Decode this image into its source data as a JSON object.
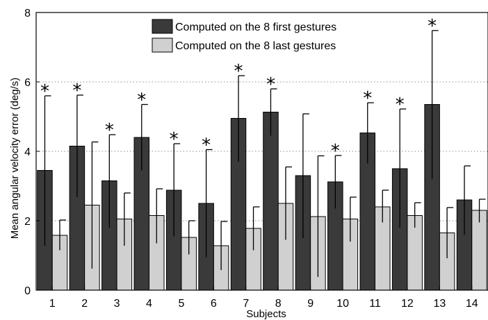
{
  "chart_data": {
    "type": "bar",
    "title": "",
    "xlabel": "Subjects",
    "ylabel": "Mean angular velocity error (deg/s)",
    "ylim": [
      0,
      8
    ],
    "yticks": [
      0,
      2,
      4,
      6,
      8
    ],
    "grid": "y-dotted",
    "legend_position": "top-center",
    "categories": [
      "1",
      "2",
      "3",
      "4",
      "5",
      "6",
      "7",
      "8",
      "9",
      "10",
      "11",
      "12",
      "13",
      "14"
    ],
    "series": [
      {
        "name": "Computed on the 8 first gestures",
        "color": "#3a3a3a",
        "values": [
          3.45,
          4.15,
          3.15,
          4.4,
          2.88,
          2.5,
          4.95,
          5.13,
          3.3,
          3.12,
          4.53,
          3.5,
          5.35,
          2.6
        ],
        "error_low": [
          1.28,
          2.68,
          1.8,
          3.45,
          1.55,
          0.95,
          3.7,
          4.45,
          1.5,
          2.35,
          3.65,
          1.8,
          3.2,
          1.6
        ],
        "error_high": [
          5.6,
          5.62,
          4.48,
          5.35,
          4.22,
          4.05,
          6.18,
          5.8,
          5.08,
          3.88,
          5.4,
          5.22,
          7.48,
          3.58
        ]
      },
      {
        "name": "Computed on the 8 last gestures",
        "color": "#d0d0d0",
        "values": [
          1.58,
          2.45,
          2.05,
          2.15,
          1.52,
          1.28,
          1.78,
          2.5,
          2.12,
          2.05,
          2.4,
          2.15,
          1.65,
          2.3
        ],
        "error_low": [
          1.15,
          0.62,
          1.28,
          1.35,
          1.03,
          0.58,
          1.15,
          1.45,
          0.38,
          1.4,
          1.95,
          1.8,
          0.92,
          1.95
        ],
        "error_high": [
          2.02,
          4.27,
          2.8,
          2.92,
          2.0,
          1.98,
          2.4,
          3.55,
          3.87,
          2.68,
          2.88,
          2.52,
          2.38,
          2.62
        ]
      }
    ],
    "significance_marker": "*",
    "significant_categories": [
      "1",
      "2",
      "3",
      "4",
      "5",
      "6",
      "7",
      "8",
      "10",
      "11",
      "12",
      "13"
    ]
  }
}
